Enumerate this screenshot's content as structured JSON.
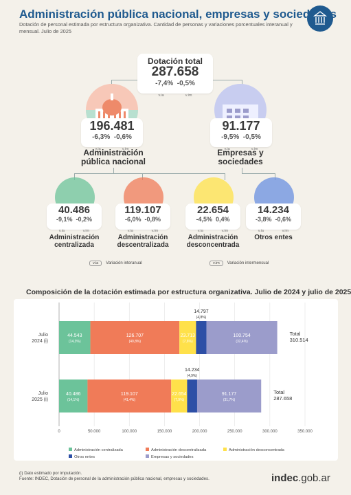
{
  "header": {
    "title": "Administración pública nacional, empresas y sociedades",
    "subtitle": "Dotación de personal estimada por estructura organizativa. Cantidad de personas y variaciones porcentuales interanual y mensual. Julio de 2025"
  },
  "total": {
    "label": "Dotación total",
    "value": "287.658",
    "via": "-7,4%",
    "vim": "-0,5%",
    "via_sub": "v.ia",
    "vim_sub": "v.im"
  },
  "apn": {
    "value": "196.481",
    "via": "-6,3%",
    "vim": "-0,6%",
    "via_sub": "v.ia",
    "vim_sub": "v.im",
    "label1": "Administración",
    "label2": "pública nacional"
  },
  "emp": {
    "value": "91.177",
    "via": "-9,5%",
    "vim": "-0,5%",
    "via_sub": "v.ia",
    "vim_sub": "v.im",
    "label1": "Empresas y",
    "label2": "sociedades"
  },
  "subcats": [
    {
      "value": "40.486",
      "via": "-9,1%",
      "vim": "-0,2%",
      "via_sub": "v.ia",
      "vim_sub": "v.im",
      "label1": "Administración",
      "label2": "centralizada",
      "color": "#6cc39a"
    },
    {
      "value": "119.107",
      "via": "-6,0%",
      "vim": "-0,8%",
      "via_sub": "v.ia",
      "vim_sub": "v.im",
      "label1": "Administración",
      "label2": "descentralizada",
      "color": "#f07b58"
    },
    {
      "value": "22.654",
      "via": "-4,5%",
      "vim": "0,4%",
      "via_sub": "v.ia",
      "vim_sub": "v.im",
      "label1": "Administración",
      "label2": "desconcentrada",
      "color": "#ffe14a"
    },
    {
      "value": "14.234",
      "via": "-3,8%",
      "vim": "-0,6%",
      "via_sub": "v.ia",
      "vim_sub": "v.im",
      "label1": "Otros entes",
      "label2": "",
      "color": "#6a8fe0"
    }
  ],
  "legend_keys": {
    "via_key": "v.ia",
    "via_text": "Variación interanual",
    "vim_key": "v.im",
    "vim_text": "Variación intermensual"
  },
  "chart_data": {
    "type": "bar",
    "orientation": "horizontal",
    "stacked": true,
    "title": "Composición de la dotación estimada por estructura organizativa. Julio de 2024 y julio de 2025",
    "categories": [
      "Julio 2024 (i)",
      "Julio 2025 (i)"
    ],
    "category_lines": [
      [
        "Julio",
        "2024 (i)"
      ],
      [
        "Julio",
        "2025 (i)"
      ]
    ],
    "series": [
      {
        "name": "Administración centralizada",
        "color": "#6cc39a",
        "values": [
          44543,
          40486
        ],
        "labels": [
          "44.543",
          "40.486"
        ],
        "pct": [
          "(14,3%)",
          "(14,1%)"
        ]
      },
      {
        "name": "Administración descentralizada",
        "color": "#f07b58",
        "values": [
          126707,
          119107
        ],
        "labels": [
          "126.707",
          "119.107"
        ],
        "pct": [
          "(40,8%)",
          "(41,4%)"
        ]
      },
      {
        "name": "Administración desconcentrada",
        "color": "#ffe14a",
        "values": [
          23713,
          22654
        ],
        "labels": [
          "23.713",
          "22.654"
        ],
        "pct": [
          "(7,6%)",
          "(7,9%)"
        ]
      },
      {
        "name": "Otros entes",
        "color": "#2d4fa6",
        "values": [
          14797,
          14234
        ],
        "labels": [
          "14.797",
          "14.234"
        ],
        "pct": [
          "(4,8%)",
          "(4,9%)"
        ]
      },
      {
        "name": "Empresas y sociedades",
        "color": "#9b9ccb",
        "values": [
          100754,
          91177
        ],
        "labels": [
          "100.754",
          "91.177"
        ],
        "pct": [
          "(32,4%)",
          "(31,7%)"
        ]
      }
    ],
    "totals": [
      {
        "label": "Total",
        "value": "310.514"
      },
      {
        "label": "Total",
        "value": "287.658"
      }
    ],
    "xlim": [
      0,
      350000
    ],
    "xticks": [
      0,
      50000,
      100000,
      150000,
      200000,
      250000,
      300000,
      350000
    ],
    "xtick_labels": [
      "0",
      "50.000",
      "100.000",
      "150.000",
      "200.000",
      "250.000",
      "300.000",
      "350.000"
    ],
    "legend_position": "bottom"
  },
  "footer": {
    "note": "(i) Dato estimado por imputación.",
    "source": "Fuente: INDEC, Dotación de personal de la administración pública nacional, empresas y sociedades.",
    "brand": "indec",
    "brand_suffix": ".gob.ar"
  }
}
